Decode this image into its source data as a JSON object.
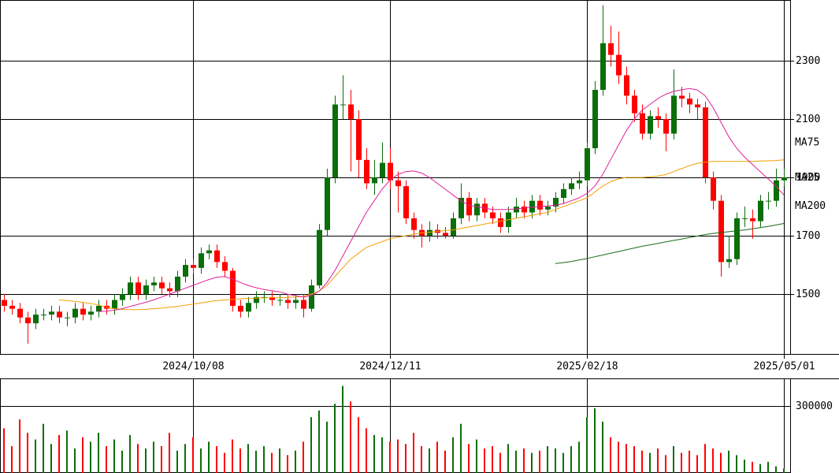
{
  "chart_data": {
    "type": "candlestick",
    "up_color": "#0a6e0a",
    "down_color": "#ff0000",
    "ylim": [
      1295,
      2508
    ],
    "yticks": [
      1500,
      1700,
      1900,
      2100,
      2300
    ],
    "grid": true,
    "categories": [
      null,
      null,
      null,
      null,
      null,
      null,
      null,
      null,
      null,
      null,
      null,
      null,
      null,
      null,
      null,
      null,
      null,
      null,
      null,
      null,
      null,
      null,
      null,
      null,
      "2024/10/08",
      null,
      null,
      null,
      null,
      null,
      null,
      null,
      null,
      null,
      null,
      null,
      null,
      null,
      null,
      null,
      null,
      null,
      null,
      null,
      null,
      null,
      null,
      null,
      null,
      "2024/12/11",
      null,
      null,
      null,
      null,
      null,
      null,
      null,
      null,
      null,
      null,
      null,
      null,
      null,
      null,
      null,
      null,
      null,
      null,
      null,
      null,
      null,
      null,
      null,
      null,
      "2025/02/18",
      null,
      null,
      null,
      null,
      null,
      null,
      null,
      null,
      null,
      null,
      null,
      null,
      null,
      null,
      null,
      null,
      null,
      null,
      null,
      null,
      null,
      null,
      null,
      null,
      "2025/05/01"
    ],
    "open": [
      1480,
      1460,
      1450,
      1420,
      1400,
      1430,
      1430,
      1440,
      1420,
      1420,
      1450,
      1430,
      1440,
      1460,
      1450,
      1480,
      1500,
      1540,
      1500,
      1530,
      1540,
      1520,
      1510,
      1560,
      1600,
      1590,
      1640,
      1650,
      1610,
      1580,
      1460,
      1440,
      1470,
      1490,
      1490,
      1480,
      1480,
      1470,
      1480,
      1450,
      1530,
      1720,
      1900,
      2150,
      2150,
      2100,
      1960,
      1880,
      1900,
      1950,
      1890,
      1870,
      1760,
      1720,
      1700,
      1720,
      1710,
      1700,
      1760,
      1830,
      1770,
      1810,
      1780,
      1760,
      1730,
      1780,
      1800,
      1780,
      1820,
      1790,
      1800,
      1830,
      1860,
      1880,
      1890,
      2000,
      2200,
      2360,
      2320,
      2250,
      2180,
      2120,
      2050,
      2110,
      2100,
      2050,
      2180,
      2170,
      2150,
      2140,
      1900,
      1820,
      1610,
      1620,
      1760,
      1760,
      1750,
      1820,
      1820,
      1890
    ],
    "high": [
      1500,
      1480,
      1470,
      1440,
      1450,
      1450,
      1460,
      1460,
      1440,
      1470,
      1470,
      1460,
      1480,
      1480,
      1500,
      1520,
      1560,
      1560,
      1550,
      1560,
      1560,
      1540,
      1580,
      1620,
      1620,
      1660,
      1670,
      1670,
      1630,
      1590,
      1480,
      1490,
      1510,
      1510,
      1510,
      1500,
      1500,
      1500,
      1500,
      1550,
      1740,
      1930,
      2180,
      2250,
      2200,
      2130,
      2000,
      1960,
      2020,
      2000,
      1920,
      1890,
      1780,
      1740,
      1750,
      1740,
      1730,
      1780,
      1880,
      1850,
      1830,
      1830,
      1800,
      1780,
      1800,
      1830,
      1820,
      1840,
      1840,
      1820,
      1850,
      1880,
      1900,
      1920,
      2020,
      2230,
      2490,
      2420,
      2400,
      2280,
      2200,
      2150,
      2130,
      2140,
      2120,
      2270,
      2210,
      2190,
      2170,
      2160,
      1920,
      1840,
      1700,
      1780,
      1800,
      1790,
      1840,
      1850,
      1930,
      1930
    ],
    "low": [
      1440,
      1430,
      1400,
      1330,
      1380,
      1410,
      1410,
      1400,
      1390,
      1400,
      1410,
      1410,
      1420,
      1430,
      1430,
      1460,
      1480,
      1480,
      1480,
      1510,
      1500,
      1490,
      1490,
      1540,
      1570,
      1570,
      1620,
      1590,
      1560,
      1440,
      1420,
      1420,
      1450,
      1470,
      1460,
      1460,
      1450,
      1450,
      1420,
      1440,
      1520,
      1700,
      1880,
      2100,
      1920,
      1900,
      1860,
      1840,
      1880,
      1860,
      1780,
      1740,
      1690,
      1660,
      1680,
      1690,
      1690,
      1690,
      1740,
      1750,
      1750,
      1760,
      1740,
      1710,
      1710,
      1760,
      1760,
      1760,
      1770,
      1770,
      1780,
      1810,
      1840,
      1860,
      1870,
      1980,
      2180,
      2280,
      2220,
      2150,
      2090,
      2030,
      2030,
      2070,
      1990,
      2030,
      2140,
      2120,
      2100,
      1880,
      1790,
      1560,
      1590,
      1600,
      1730,
      1690,
      1730,
      1790,
      1800,
      1870
    ],
    "close": [
      1460,
      1450,
      1420,
      1400,
      1430,
      1430,
      1440,
      1420,
      1420,
      1450,
      1430,
      1440,
      1460,
      1450,
      1480,
      1500,
      1540,
      1500,
      1530,
      1540,
      1520,
      1510,
      1560,
      1600,
      1590,
      1640,
      1650,
      1610,
      1580,
      1460,
      1440,
      1470,
      1490,
      1490,
      1480,
      1480,
      1470,
      1480,
      1450,
      1530,
      1720,
      1900,
      2150,
      2150,
      2100,
      1960,
      1880,
      1900,
      1950,
      1890,
      1870,
      1760,
      1720,
      1700,
      1720,
      1710,
      1700,
      1760,
      1830,
      1770,
      1810,
      1780,
      1760,
      1730,
      1780,
      1800,
      1780,
      1820,
      1790,
      1800,
      1830,
      1860,
      1880,
      1890,
      2000,
      2200,
      2360,
      2320,
      2250,
      2180,
      2120,
      2050,
      2110,
      2100,
      2050,
      2180,
      2170,
      2150,
      2140,
      1900,
      1820,
      1610,
      1620,
      1760,
      1760,
      1750,
      1820,
      1820,
      1890,
      1900
    ],
    "series": [
      {
        "name": "MA75",
        "color": "#f0a000",
        "values": [
          null,
          null,
          null,
          null,
          null,
          null,
          null,
          1480,
          1478,
          1475,
          1472,
          1468,
          1463,
          1455,
          1450,
          1448,
          1447,
          1447,
          1448,
          1450,
          1452,
          1455,
          1458,
          1462,
          1466,
          1470,
          1474,
          1478,
          1480,
          1482,
          1484,
          1485,
          1486,
          1487,
          1488,
          1488,
          1489,
          1490,
          1492,
          1500,
          1510,
          1530,
          1560,
          1590,
          1620,
          1640,
          1660,
          1670,
          1680,
          1690,
          1695,
          1700,
          1705,
          1710,
          1712,
          1715,
          1718,
          1720,
          1725,
          1730,
          1735,
          1740,
          1745,
          1750,
          1755,
          1760,
          1765,
          1770,
          1775,
          1780,
          1790,
          1800,
          1810,
          1820,
          1830,
          1850,
          1870,
          1885,
          1895,
          1900,
          1900,
          1900,
          1902,
          1905,
          1910,
          1920,
          1930,
          1940,
          1948,
          1952,
          1955,
          1955,
          1955,
          1955,
          1955,
          1955,
          1956,
          1957,
          1958,
          1960
        ]
      },
      {
        "name": "MA25",
        "color": "#e0209a",
        "values": [
          null,
          null,
          null,
          null,
          null,
          null,
          null,
          null,
          null,
          null,
          null,
          null,
          1440,
          1442,
          1445,
          1450,
          1458,
          1465,
          1472,
          1480,
          1490,
          1500,
          1510,
          1520,
          1530,
          1540,
          1550,
          1558,
          1560,
          1552,
          1540,
          1530,
          1522,
          1516,
          1512,
          1508,
          1500,
          1495,
          1490,
          1495,
          1510,
          1540,
          1580,
          1630,
          1680,
          1730,
          1780,
          1820,
          1860,
          1890,
          1910,
          1920,
          1922,
          1915,
          1900,
          1880,
          1860,
          1840,
          1820,
          1805,
          1800,
          1795,
          1790,
          1790,
          1790,
          1792,
          1795,
          1798,
          1800,
          1802,
          1805,
          1810,
          1820,
          1830,
          1845,
          1870,
          1910,
          1960,
          2010,
          2060,
          2100,
          2130,
          2150,
          2170,
          2185,
          2195,
          2200,
          2205,
          2200,
          2180,
          2140,
          2090,
          2040,
          2000,
          1970,
          1945,
          1920,
          1895,
          1870,
          1840
        ]
      },
      {
        "name": "MA200",
        "color": "#1a6a1a",
        "values": [
          null,
          null,
          null,
          null,
          null,
          null,
          null,
          null,
          null,
          null,
          null,
          null,
          null,
          null,
          null,
          null,
          null,
          null,
          null,
          null,
          null,
          null,
          null,
          null,
          null,
          null,
          null,
          null,
          null,
          null,
          null,
          null,
          null,
          null,
          null,
          null,
          null,
          null,
          null,
          null,
          null,
          null,
          null,
          null,
          null,
          null,
          null,
          null,
          null,
          null,
          null,
          null,
          null,
          null,
          null,
          null,
          null,
          null,
          null,
          null,
          null,
          null,
          null,
          null,
          null,
          null,
          null,
          null,
          null,
          null,
          1605,
          1608,
          1612,
          1617,
          1622,
          1628,
          1634,
          1640,
          1646,
          1652,
          1658,
          1664,
          1669,
          1674,
          1679,
          1684,
          1689,
          1694,
          1699,
          1704,
          1708,
          1711,
          1714,
          1717,
          1720,
          1724,
          1728,
          1732,
          1737,
          1742
        ]
      }
    ],
    "volume": {
      "ylim": [
        0,
        423500
      ],
      "yticks": [
        300000
      ],
      "values": [
        200000,
        120000,
        240000,
        180000,
        150000,
        220000,
        130000,
        170000,
        190000,
        110000,
        160000,
        140000,
        180000,
        120000,
        150000,
        100000,
        170000,
        130000,
        110000,
        140000,
        120000,
        180000,
        100000,
        130000,
        160000,
        110000,
        140000,
        120000,
        90000,
        150000,
        110000,
        130000,
        100000,
        120000,
        90000,
        110000,
        80000,
        100000,
        140000,
        250000,
        280000,
        230000,
        310000,
        390000,
        320000,
        250000,
        200000,
        170000,
        160000,
        140000,
        150000,
        130000,
        180000,
        120000,
        110000,
        140000,
        100000,
        160000,
        220000,
        130000,
        150000,
        110000,
        120000,
        90000,
        130000,
        100000,
        110000,
        90000,
        100000,
        120000,
        110000,
        90000,
        120000,
        140000,
        250000,
        290000,
        230000,
        160000,
        140000,
        130000,
        120000,
        100000,
        90000,
        110000,
        80000,
        120000,
        90000,
        100000,
        80000,
        130000,
        110000,
        90000,
        100000,
        80000,
        60000,
        50000,
        40000,
        50000,
        30000,
        20000
      ]
    }
  }
}
